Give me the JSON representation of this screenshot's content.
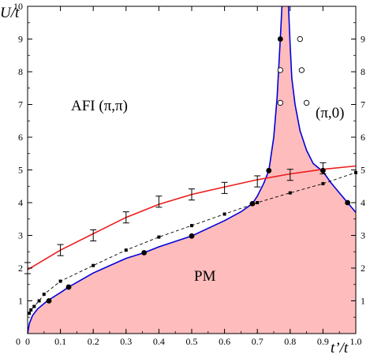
{
  "chart_data": {
    "type": "line",
    "xlabel": "t’/t",
    "ylabel": "U/t",
    "xlim": [
      0,
      1.0
    ],
    "ylim": [
      0,
      10
    ],
    "grid": false,
    "x_ticks": [
      "0",
      "0.1",
      "0.2",
      "0.3",
      "0.4",
      "0.5",
      "0.6",
      "0.7",
      "0.8",
      "0.9",
      "1.0"
    ],
    "y_ticks_left": [
      "1",
      "2",
      "3",
      "4",
      "5",
      "6",
      "7",
      "8",
      "9",
      "10"
    ],
    "y_ticks_right": [
      "1",
      "2",
      "3",
      "4",
      "5",
      "6",
      "7",
      "8",
      "9"
    ],
    "annotations": {
      "afi": "AFI  (π,π)",
      "pi0": "(π,0)",
      "pm": "PM"
    },
    "colors": {
      "pm_fill": "#ffbcbc",
      "boundary": "#0000dd",
      "red_curve": "#ee1c1c",
      "dashed": "#000000"
    },
    "series": [
      {
        "style": "blue-boundary-left",
        "x": [
          0.0,
          0.005,
          0.015,
          0.03,
          0.06,
          0.1,
          0.125,
          0.2,
          0.3,
          0.355,
          0.4,
          0.5,
          0.6,
          0.65,
          0.685,
          0.7,
          0.72,
          0.735,
          0.75,
          0.76,
          0.77,
          0.775
        ],
        "y": [
          0.0,
          0.3,
          0.55,
          0.75,
          1.0,
          1.25,
          1.42,
          1.85,
          2.3,
          2.47,
          2.65,
          2.98,
          3.45,
          3.72,
          3.97,
          4.2,
          4.6,
          4.98,
          6.0,
          7.2,
          9.0,
          10.0
        ]
      },
      {
        "style": "blue-boundary-right",
        "x": [
          0.795,
          0.8,
          0.805,
          0.815,
          0.83,
          0.85,
          0.87,
          0.9,
          0.925,
          0.95,
          0.975,
          1.0
        ],
        "y": [
          10.0,
          8.8,
          7.8,
          7.0,
          6.2,
          5.6,
          5.2,
          4.95,
          4.6,
          4.3,
          4.0,
          3.7
        ]
      },
      {
        "style": "red-curve",
        "x": [
          0.0,
          0.05,
          0.1,
          0.2,
          0.3,
          0.4,
          0.5,
          0.6,
          0.7,
          0.8,
          0.9,
          1.0
        ],
        "y": [
          1.95,
          2.25,
          2.55,
          3.05,
          3.55,
          3.95,
          4.25,
          4.48,
          4.7,
          4.88,
          5.02,
          5.12
        ]
      },
      {
        "style": "dashed-squares",
        "x": [
          0.005,
          0.01,
          0.02,
          0.035,
          0.05,
          0.1,
          0.2,
          0.3,
          0.4,
          0.5,
          0.6,
          0.7,
          0.8,
          0.9,
          1.0
        ],
        "y": [
          0.62,
          0.72,
          0.83,
          1.0,
          1.2,
          1.6,
          2.08,
          2.55,
          2.95,
          3.3,
          3.65,
          4.0,
          4.3,
          4.58,
          4.92
        ]
      }
    ],
    "red_error_bars": [
      {
        "x": 0.0,
        "y": 2.0,
        "err": 0.17
      },
      {
        "x": 0.1,
        "y": 2.55,
        "err": 0.17
      },
      {
        "x": 0.2,
        "y": 3.0,
        "err": 0.17
      },
      {
        "x": 0.3,
        "y": 3.55,
        "err": 0.17
      },
      {
        "x": 0.4,
        "y": 4.03,
        "err": 0.17
      },
      {
        "x": 0.5,
        "y": 4.25,
        "err": 0.17
      },
      {
        "x": 0.6,
        "y": 4.45,
        "err": 0.17
      },
      {
        "x": 0.7,
        "y": 4.65,
        "err": 0.17
      },
      {
        "x": 0.8,
        "y": 4.85,
        "err": 0.17
      },
      {
        "x": 0.9,
        "y": 5.05,
        "err": 0.17
      }
    ],
    "filled_dots": [
      {
        "x": 0.065,
        "y": 1.0
      },
      {
        "x": 0.125,
        "y": 1.42
      },
      {
        "x": 0.355,
        "y": 2.47
      },
      {
        "x": 0.5,
        "y": 2.98
      },
      {
        "x": 0.685,
        "y": 3.97
      },
      {
        "x": 0.735,
        "y": 4.98
      },
      {
        "x": 0.77,
        "y": 9.0
      },
      {
        "x": 0.9,
        "y": 4.98
      },
      {
        "x": 0.975,
        "y": 4.0
      }
    ],
    "open_dots": [
      {
        "x": 0.77,
        "y": 8.05
      },
      {
        "x": 0.77,
        "y": 7.05
      },
      {
        "x": 0.83,
        "y": 9.0
      },
      {
        "x": 0.835,
        "y": 8.05
      },
      {
        "x": 0.85,
        "y": 7.05
      }
    ]
  }
}
